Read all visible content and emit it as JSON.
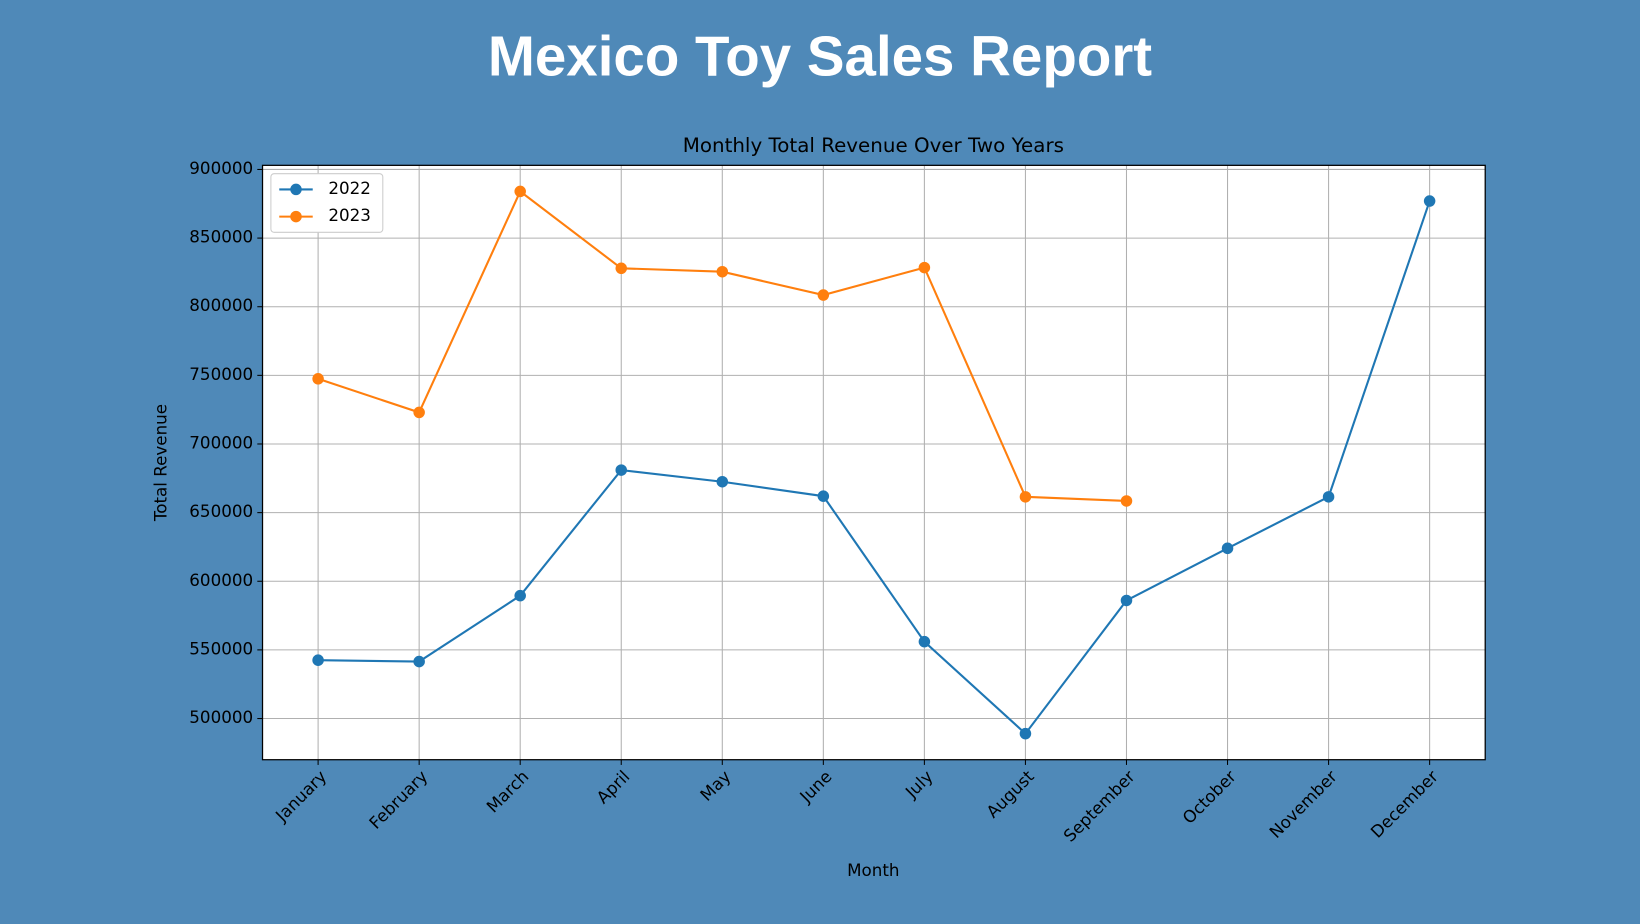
{
  "header": {
    "title": "Mexico Toy Sales Report"
  },
  "chart_data": {
    "type": "line",
    "title": "Monthly Total Revenue Over Two Years",
    "xlabel": "Month",
    "ylabel": "Total Revenue",
    "categories": [
      "January",
      "February",
      "March",
      "April",
      "May",
      "June",
      "July",
      "August",
      "September",
      "October",
      "November",
      "December"
    ],
    "series": [
      {
        "name": "2022",
        "color": "#1f77b4",
        "values": [
          542500,
          541500,
          589500,
          681000,
          672500,
          662000,
          556000,
          489000,
          586000,
          624000,
          661500,
          877000
        ]
      },
      {
        "name": "2023",
        "color": "#ff7f0e",
        "values": [
          747500,
          723000,
          884000,
          828000,
          825500,
          808500,
          828500,
          661500,
          658500,
          null,
          null,
          null
        ]
      }
    ],
    "ylim": [
      470000,
      903000
    ],
    "yticks": [
      500000,
      550000,
      600000,
      650000,
      700000,
      750000,
      800000,
      850000,
      900000
    ],
    "grid": true,
    "legend": "upper left",
    "marker": "o"
  }
}
